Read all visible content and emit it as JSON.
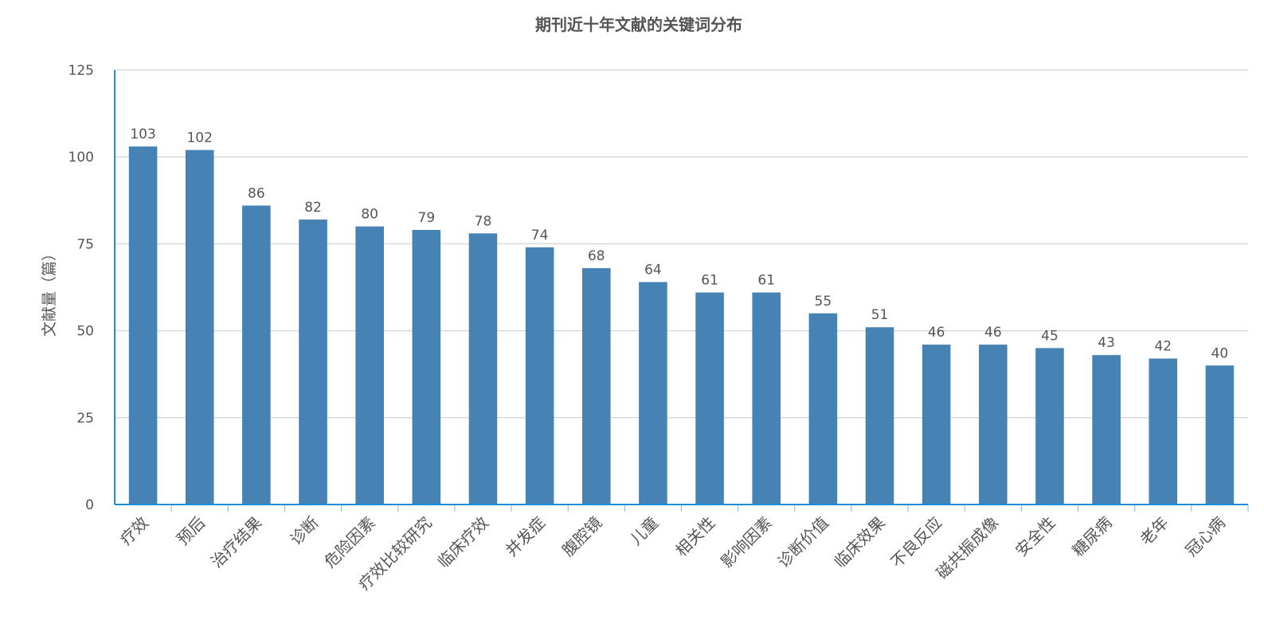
{
  "chart_data": {
    "type": "bar",
    "title": "期刊近十年文献的关键词分布",
    "xlabel": "",
    "ylabel": "文献量（篇）",
    "ylim": [
      0,
      125
    ],
    "yticks": [
      0,
      25,
      50,
      75,
      100,
      125
    ],
    "grid": true,
    "categories": [
      "疗效",
      "预后",
      "治疗结果",
      "诊断",
      "危险因素",
      "疗效比较研究",
      "临床疗效",
      "并发症",
      "腹腔镜",
      "儿童",
      "相关性",
      "影响因素",
      "诊断价值",
      "临床效果",
      "不良反应",
      "磁共振成像",
      "安全性",
      "糖尿病",
      "老年",
      "冠心病"
    ],
    "values": [
      103,
      102,
      86,
      82,
      80,
      79,
      78,
      74,
      68,
      64,
      61,
      61,
      55,
      51,
      46,
      46,
      45,
      43,
      42,
      40
    ],
    "colors": {
      "bar": "#4682b4",
      "axis": "#1f8ed8",
      "grid": "#d9d9d9",
      "text": "#555555"
    }
  }
}
